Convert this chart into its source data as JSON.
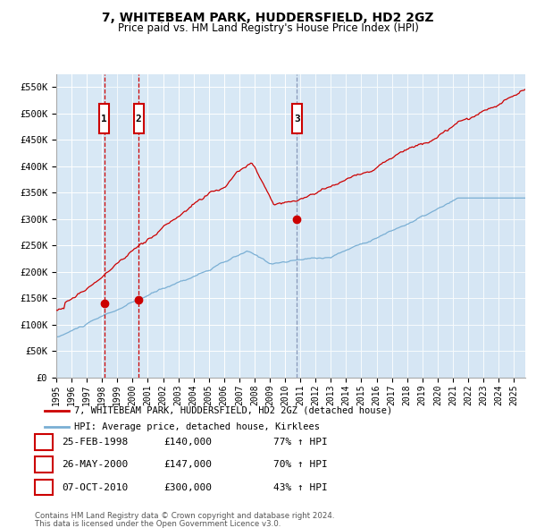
{
  "title": "7, WHITEBEAM PARK, HUDDERSFIELD, HD2 2GZ",
  "subtitle": "Price paid vs. HM Land Registry's House Price Index (HPI)",
  "legend_line1": "7, WHITEBEAM PARK, HUDDERSFIELD, HD2 2GZ (detached house)",
  "legend_line2": "HPI: Average price, detached house, Kirklees",
  "footer1": "Contains HM Land Registry data © Crown copyright and database right 2024.",
  "footer2": "This data is licensed under the Open Government Licence v3.0.",
  "sale_dates": [
    "25-FEB-1998",
    "26-MAY-2000",
    "07-OCT-2010"
  ],
  "sale_prices": [
    140000,
    147000,
    300000
  ],
  "sale_labels": [
    "1",
    "2",
    "3"
  ],
  "sale_pct": [
    "77% ↑ HPI",
    "70% ↑ HPI",
    "43% ↑ HPI"
  ],
  "sale_date_numeric": [
    1998.14,
    2000.4,
    2010.77
  ],
  "plot_bg_color": "#d8e8f5",
  "red_line_color": "#cc0000",
  "blue_line_color": "#7aafd4",
  "vline_color_red": "#cc0000",
  "vline_color_blue": "#8899bb",
  "marker_color": "#cc0000",
  "label_box_color": "#cc0000",
  "ylim": [
    0,
    575000
  ],
  "xlim_start": 1995.0,
  "xlim_end": 2025.75,
  "ytick_values": [
    0,
    50000,
    100000,
    150000,
    200000,
    250000,
    300000,
    350000,
    400000,
    450000,
    500000,
    550000
  ],
  "ytick_labels": [
    "£0",
    "£50K",
    "£100K",
    "£150K",
    "£200K",
    "£250K",
    "£300K",
    "£350K",
    "£400K",
    "£450K",
    "£500K",
    "£550K"
  ],
  "xtick_years": [
    1995,
    1996,
    1997,
    1998,
    1999,
    2000,
    2001,
    2002,
    2003,
    2004,
    2005,
    2006,
    2007,
    2008,
    2009,
    2010,
    2011,
    2012,
    2013,
    2014,
    2015,
    2016,
    2017,
    2018,
    2019,
    2020,
    2021,
    2022,
    2023,
    2024,
    2025
  ]
}
